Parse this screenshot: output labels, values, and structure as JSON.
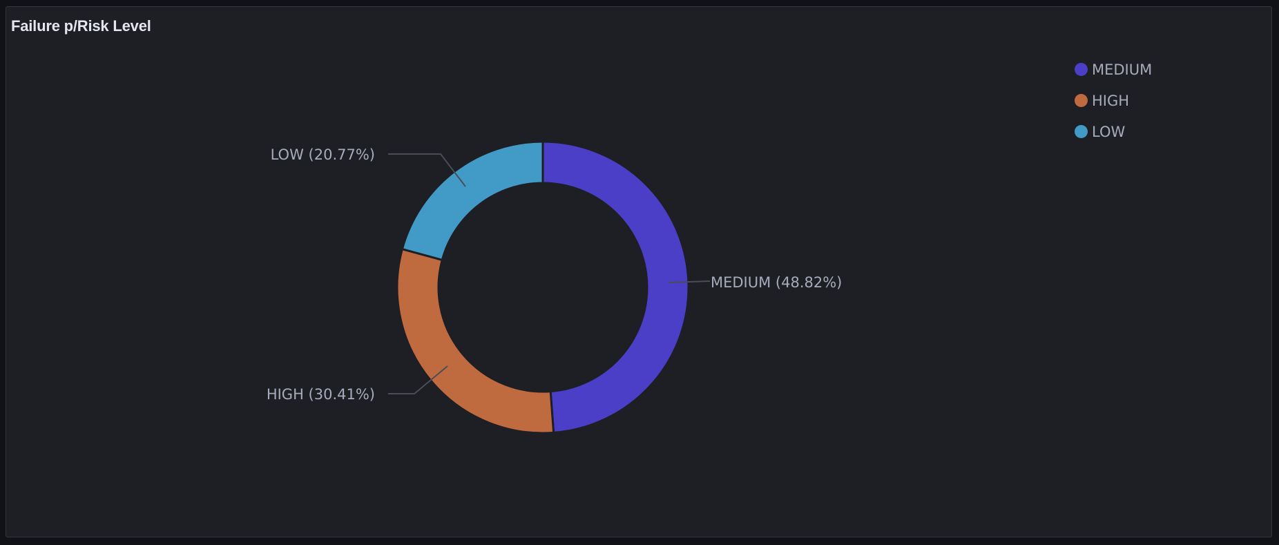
{
  "panel": {
    "title": "Failure p/Risk Level"
  },
  "chart_data": {
    "type": "pie",
    "title": "Failure p/Risk Level",
    "donut": true,
    "legend_position": "top-right",
    "slices": [
      {
        "label": "MEDIUM",
        "value": 48.82,
        "display": "MEDIUM (48.82%)",
        "color": "#4a3fc6"
      },
      {
        "label": "HIGH",
        "value": 30.41,
        "display": "HIGH (30.41%)",
        "color": "#c06a40"
      },
      {
        "label": "LOW",
        "value": 20.77,
        "display": "LOW (20.77%)",
        "color": "#429bc6"
      }
    ]
  },
  "legend": {
    "items": [
      {
        "label": "MEDIUM",
        "color": "#4a3fc6"
      },
      {
        "label": "HIGH",
        "color": "#c06a40"
      },
      {
        "label": "LOW",
        "color": "#429bc6"
      }
    ]
  }
}
